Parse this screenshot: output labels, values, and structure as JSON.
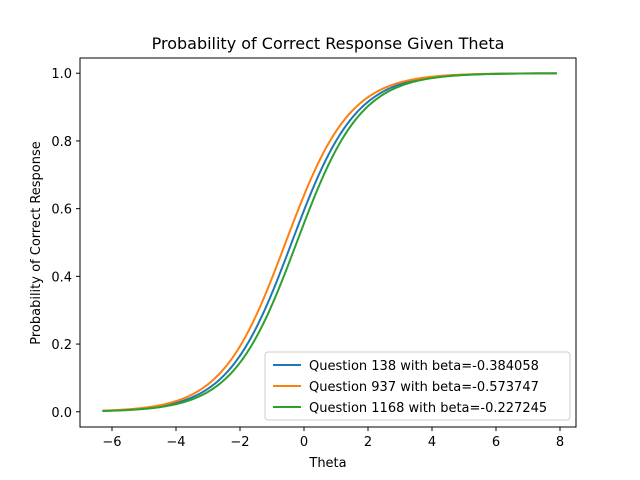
{
  "chart_data": {
    "type": "line",
    "title": "Probability of Correct Response Given Theta",
    "xlabel": "Theta",
    "ylabel": "Probability of Correct Response",
    "xlim": [
      -7,
      8.5
    ],
    "ylim": [
      -0.045,
      1.045
    ],
    "x_range": [
      -6.3,
      7.9
    ],
    "xticks": [
      -6,
      -4,
      -2,
      0,
      2,
      4,
      6,
      8
    ],
    "xtick_labels": [
      "−6",
      "−4",
      "−2",
      "0",
      "2",
      "4",
      "6",
      "8"
    ],
    "yticks": [
      0.0,
      0.2,
      0.4,
      0.6,
      0.8,
      1.0
    ],
    "ytick_labels": [
      "0.0",
      "0.2",
      "0.4",
      "0.6",
      "0.8",
      "1.0"
    ],
    "grid": false,
    "legend_position": "lower-right",
    "series": [
      {
        "name": "Question 138 with beta=-0.384058",
        "beta": -0.384058,
        "color": "#1f77b4"
      },
      {
        "name": "Question 937 with beta=-0.573747",
        "beta": -0.573747,
        "color": "#ff7f0e"
      },
      {
        "name": "Question 1168 with beta=-0.227245",
        "beta": -0.227245,
        "color": "#2ca02c"
      }
    ]
  }
}
